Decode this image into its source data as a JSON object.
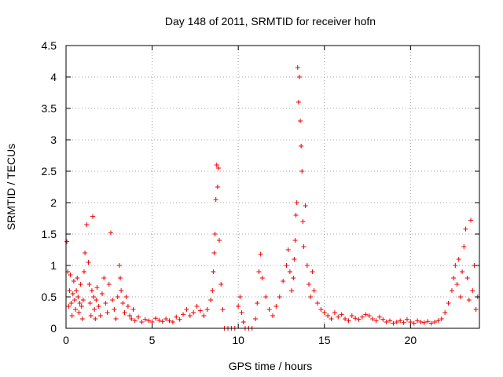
{
  "chart_data": {
    "type": "scatter",
    "title": "Day 148 of 2011, SRMTID for receiver hofn",
    "xlabel": "GPS time / hours",
    "ylabel": "SRMTID / TECUs",
    "xlim": [
      0,
      24
    ],
    "ylim": [
      0,
      4.5
    ],
    "xticks": [
      0,
      5,
      10,
      15,
      20
    ],
    "xtick_labels": [
      "0",
      "5",
      "10",
      "15",
      "20"
    ],
    "yticks": [
      0,
      0.5,
      1,
      1.5,
      2,
      2.5,
      3,
      3.5,
      4,
      4.5
    ],
    "ytick_labels": [
      "0",
      "0.5",
      "1",
      "1.5",
      "2",
      "2.5",
      "3",
      "3.5",
      "4",
      "4.5"
    ],
    "grid": true,
    "marker": "plus",
    "series_color": "#ee0000",
    "series": [
      {
        "x": [
          0.05,
          0.1,
          0.15,
          0.2,
          0.25,
          0.3,
          0.35,
          0.4,
          0.45,
          0.5,
          0.55,
          0.6,
          0.65,
          0.7,
          0.75,
          0.8,
          0.85,
          0.9,
          0.95,
          1.0,
          1.05,
          1.1,
          1.2,
          1.3,
          1.35,
          1.4,
          1.45,
          1.5,
          1.55,
          1.6,
          1.65,
          1.7,
          1.75,
          1.8,
          1.9,
          2.0,
          2.1,
          2.2,
          2.3,
          2.4,
          2.5,
          2.6,
          2.7,
          2.8,
          2.9,
          3.0,
          3.1,
          3.15,
          3.2,
          3.3,
          3.4,
          3.5,
          3.6,
          3.7,
          3.8,
          3.9,
          4.0,
          4.2,
          4.4,
          4.6,
          4.8,
          5.0,
          5.2,
          5.4,
          5.6,
          5.8,
          6.0,
          6.2,
          6.4,
          6.6,
          6.8,
          7.0,
          7.2,
          7.4,
          7.6,
          7.8,
          8.0,
          8.2,
          8.4,
          8.5,
          8.55,
          8.6,
          8.65,
          8.7,
          8.75,
          8.8,
          8.85,
          8.9,
          9.0,
          9.1,
          9.2,
          9.4,
          9.6,
          9.8,
          10.0,
          10.1,
          10.2,
          10.3,
          10.4,
          10.6,
          10.8,
          11.0,
          11.1,
          11.2,
          11.3,
          11.4,
          11.6,
          11.8,
          12.0,
          12.2,
          12.4,
          12.6,
          12.8,
          12.9,
          13.0,
          13.1,
          13.2,
          13.25,
          13.3,
          13.35,
          13.4,
          13.45,
          13.5,
          13.55,
          13.6,
          13.65,
          13.7,
          13.75,
          13.8,
          13.9,
          14.0,
          14.1,
          14.2,
          14.3,
          14.4,
          14.6,
          14.8,
          15.0,
          15.2,
          15.4,
          15.6,
          15.8,
          16.0,
          16.2,
          16.4,
          16.6,
          16.8,
          17.0,
          17.2,
          17.4,
          17.6,
          17.8,
          18.0,
          18.2,
          18.4,
          18.6,
          18.8,
          19.0,
          19.2,
          19.4,
          19.6,
          19.8,
          20.0,
          20.2,
          20.4,
          20.6,
          20.8,
          21.0,
          21.2,
          21.4,
          21.6,
          21.8,
          22.0,
          22.2,
          22.4,
          22.5,
          22.6,
          22.7,
          22.8,
          22.9,
          23.0,
          23.1,
          23.2,
          23.3,
          23.4,
          23.5,
          23.6,
          23.7,
          23.8,
          23.9
        ],
        "y": [
          1.38,
          0.9,
          0.35,
          0.6,
          0.85,
          0.4,
          0.2,
          0.55,
          0.75,
          0.45,
          0.3,
          0.6,
          0.8,
          0.5,
          0.25,
          0.4,
          0.7,
          0.35,
          0.15,
          0.45,
          0.9,
          1.2,
          1.65,
          1.05,
          0.7,
          0.4,
          0.2,
          0.6,
          1.78,
          0.5,
          0.3,
          0.15,
          0.45,
          0.65,
          0.35,
          0.2,
          0.55,
          0.8,
          0.4,
          0.25,
          0.7,
          1.52,
          0.45,
          0.3,
          0.15,
          0.5,
          1.0,
          0.8,
          0.6,
          0.4,
          0.25,
          0.5,
          0.35,
          0.2,
          0.15,
          0.3,
          0.12,
          0.18,
          0.1,
          0.14,
          0.12,
          0.1,
          0.16,
          0.13,
          0.11,
          0.15,
          0.12,
          0.1,
          0.18,
          0.14,
          0.22,
          0.3,
          0.2,
          0.25,
          0.35,
          0.28,
          0.2,
          0.3,
          0.45,
          0.6,
          0.9,
          1.2,
          1.5,
          2.05,
          2.6,
          2.25,
          2.55,
          1.4,
          0.7,
          0.3,
          0.0,
          0.0,
          0.0,
          0.0,
          0.35,
          0.5,
          0.25,
          0.1,
          0.0,
          0.0,
          0.0,
          0.15,
          0.4,
          0.9,
          1.18,
          0.8,
          0.5,
          0.3,
          0.2,
          0.35,
          0.5,
          0.75,
          1.0,
          1.25,
          0.9,
          0.6,
          0.8,
          1.1,
          1.4,
          1.8,
          2.0,
          4.15,
          3.6,
          4.0,
          3.3,
          2.9,
          2.5,
          1.7,
          1.3,
          1.95,
          1.0,
          0.7,
          0.5,
          0.9,
          0.6,
          0.4,
          0.3,
          0.25,
          0.2,
          0.15,
          0.25,
          0.18,
          0.22,
          0.15,
          0.12,
          0.2,
          0.16,
          0.14,
          0.18,
          0.22,
          0.2,
          0.15,
          0.12,
          0.18,
          0.14,
          0.1,
          0.12,
          0.08,
          0.1,
          0.12,
          0.09,
          0.14,
          0.1,
          0.08,
          0.12,
          0.1,
          0.09,
          0.11,
          0.08,
          0.1,
          0.12,
          0.15,
          0.25,
          0.4,
          0.6,
          0.8,
          1.0,
          0.7,
          1.1,
          0.5,
          0.9,
          1.3,
          1.58,
          0.8,
          0.45,
          1.72,
          0.6,
          1.0,
          0.3,
          0.5
        ]
      }
    ]
  }
}
